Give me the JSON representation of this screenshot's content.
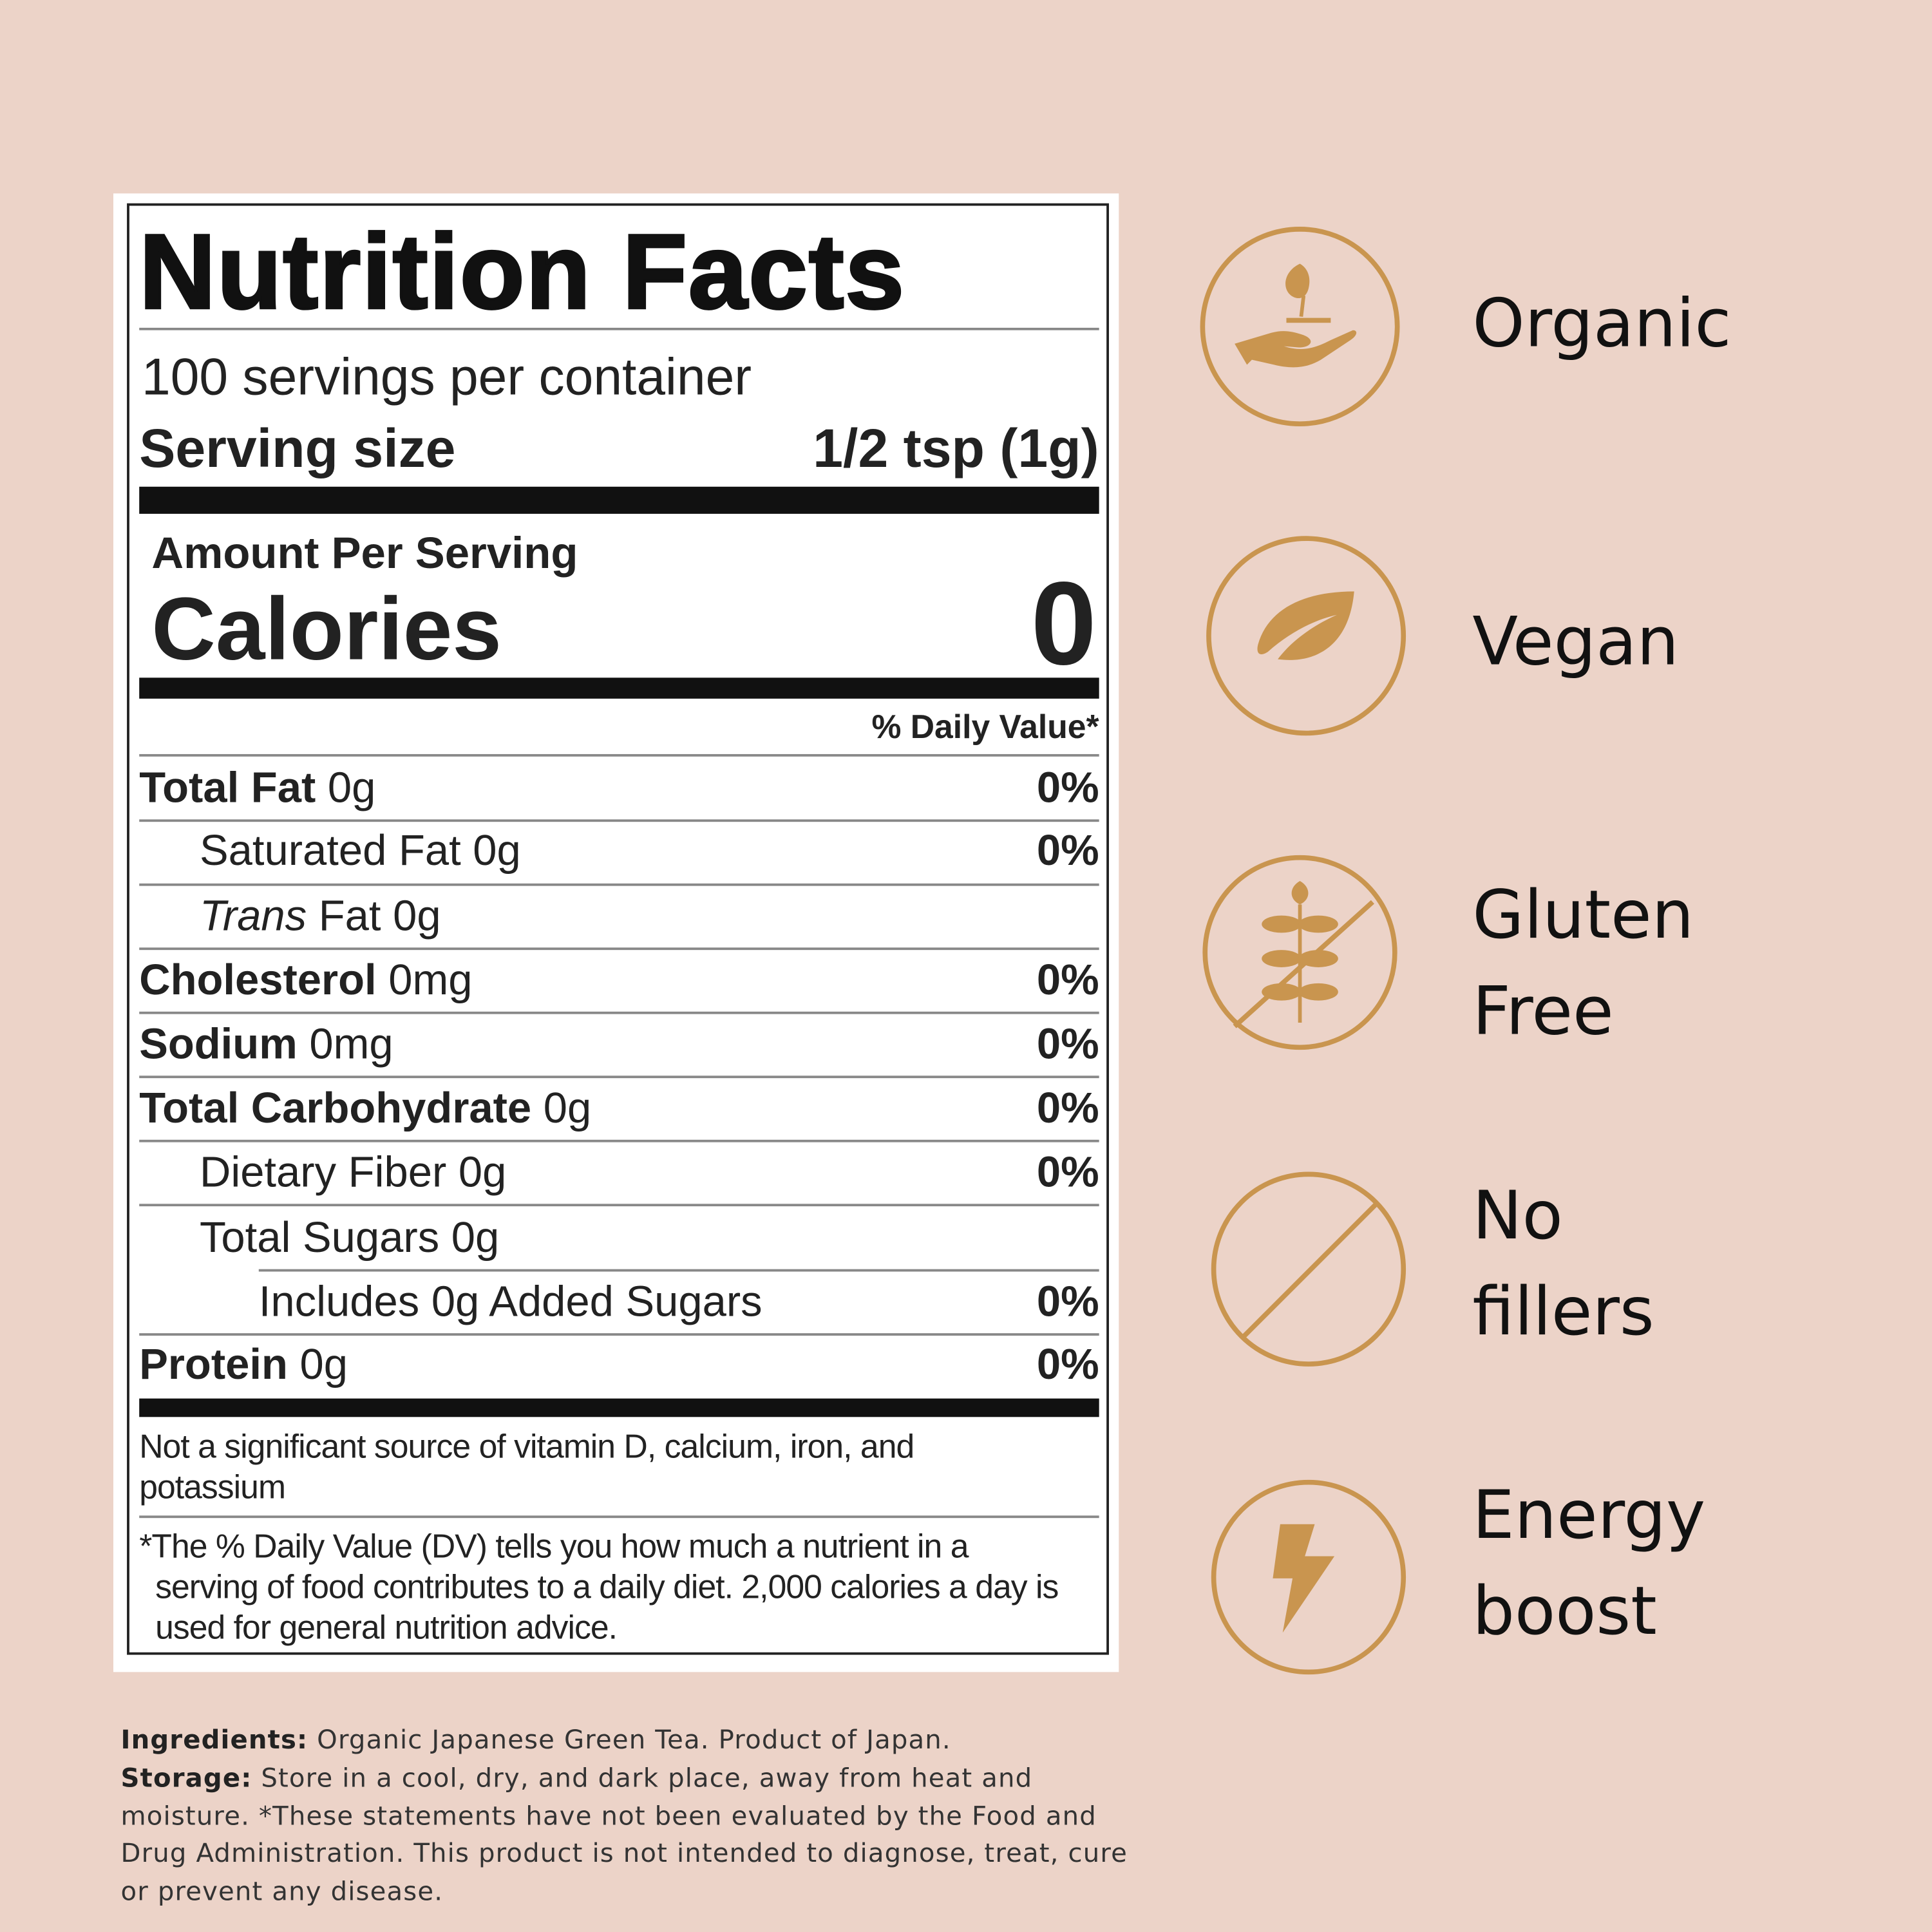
{
  "colors": {
    "background": "#ecd3c8",
    "accent": "#c9954f",
    "label_bg": "#ffffff"
  },
  "nutrition": {
    "title": "Nutrition Facts",
    "servings": "100 servings per container",
    "serving_size_label": "Serving size",
    "serving_size_value": "1/2 tsp (1g)",
    "amount_per_serving": "Amount Per Serving",
    "calories_label": "Calories",
    "calories_value": "0",
    "daily_value_header": "% Daily Value*",
    "rows": [
      {
        "name": "Total Fat",
        "amount": " 0g",
        "dv": "0%"
      },
      {
        "name": "Saturated Fat 0g",
        "amount": "",
        "dv": "0%"
      },
      {
        "name": "Trans",
        "amount": " Fat 0g",
        "dv": ""
      },
      {
        "name": "Cholesterol",
        "amount": " 0mg",
        "dv": "0%"
      },
      {
        "name": "Sodium",
        "amount": " 0mg",
        "dv": "0%"
      },
      {
        "name": "Total Carbohydrate",
        "amount": " 0g",
        "dv": "0%"
      },
      {
        "name": "Dietary Fiber 0g",
        "amount": "",
        "dv": "0%"
      },
      {
        "name": "Total Sugars 0g",
        "amount": "",
        "dv": ""
      },
      {
        "name": "Includes 0g Added Sugars",
        "amount": "",
        "dv": "0%"
      },
      {
        "name": "Protein",
        "amount": " 0g",
        "dv": "0%"
      }
    ],
    "footnote_1": "Not a significant source of vitamin D, calcium, iron, and potassium",
    "footnote_2": "*The % Daily Value (DV) tells you how much a nutrient in a serving of food contributes to a daily diet. 2,000 calories a day is used for general nutrition advice."
  },
  "features": [
    {
      "icon": "hand-sprout-icon",
      "line1": "Organic",
      "line2": ""
    },
    {
      "icon": "leaf-icon",
      "line1": "Vegan",
      "line2": ""
    },
    {
      "icon": "no-wheat-icon",
      "line1": "Gluten",
      "line2": "Free"
    },
    {
      "icon": "no-symbol-icon",
      "line1": "No",
      "line2": "fillers"
    },
    {
      "icon": "lightning-icon",
      "line1": "Energy",
      "line2": "boost"
    }
  ],
  "ingredients": {
    "ingredients_label": "Ingredients:",
    "ingredients_text": " Organic Japanese Green Tea. Product of Japan.",
    "storage_label": "Storage:",
    "storage_text": " Store in a cool, dry, and dark place, away from heat and moisture. *These statements have not been evaluated by the Food and Drug Administration. This product is not intended to diagnose, treat, cure or prevent any disease."
  }
}
